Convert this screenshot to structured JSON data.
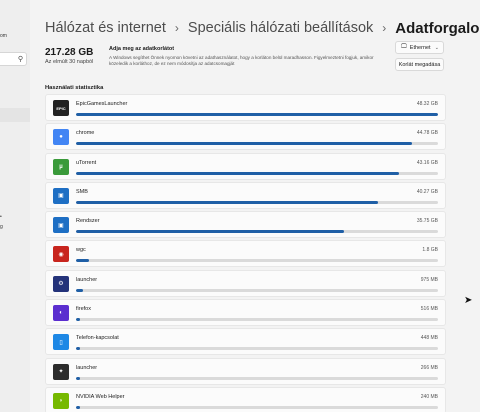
{
  "sidebar": {
    "partial_texts": [
      "om",
      "g"
    ],
    "search_icon": "search-icon"
  },
  "breadcrumb": {
    "items": [
      "Hálózat és internet",
      "Speciális hálózati beállítások",
      "Adatforgalom"
    ],
    "separator": "›"
  },
  "summary": {
    "total": "217.28 GB",
    "caption": "Az elmúlt 30 napból",
    "limit_title": "Adja meg az adatkorlátot",
    "limit_description": "A Windows segíthet Önnek nyomon követni az adathasználatot, hogy a korláton belül maradhasson. Figyelmeztetni fogjuk, amikor közeledik a korláthoz, de ez nem módosítja az adatcsomagját"
  },
  "network_select": {
    "value": "Ethernet",
    "icon": "monitor-icon"
  },
  "limit_button": {
    "label": "Korlát megadása"
  },
  "usage": {
    "heading": "Használati statisztika",
    "bar_color": "#1f5fa6",
    "apps": [
      {
        "name": "EpicGamesLauncher",
        "size": "48.32 GB",
        "fraction": 1.0,
        "icon": "epic-games-icon",
        "color": "#222222",
        "glyph": "EPIC"
      },
      {
        "name": "chrome",
        "size": "44.78 GB",
        "fraction": 0.927,
        "icon": "chrome-icon",
        "color": "#4285f4",
        "glyph": "●"
      },
      {
        "name": "uTorrent",
        "size": "43.16 GB",
        "fraction": 0.893,
        "icon": "utorrent-icon",
        "color": "#3a9a3a",
        "glyph": "µ"
      },
      {
        "name": "SMB",
        "size": "40.27 GB",
        "fraction": 0.833,
        "icon": "smb-icon",
        "color": "#1e6fc4",
        "glyph": "▣"
      },
      {
        "name": "Rendszer",
        "size": "35.75 GB",
        "fraction": 0.74,
        "icon": "system-icon",
        "color": "#1e6fc4",
        "glyph": "▣"
      },
      {
        "name": "wgc",
        "size": "1.8 GB",
        "fraction": 0.037,
        "icon": "wgc-icon",
        "color": "#c8251e",
        "glyph": "◉"
      },
      {
        "name": "launcher",
        "size": "975 MB",
        "fraction": 0.02,
        "icon": "launcher-icon",
        "color": "#24337a",
        "glyph": "⚙"
      },
      {
        "name": "firefox",
        "size": "516 MB",
        "fraction": 0.011,
        "icon": "firefox-icon",
        "color": "#5b2ecf",
        "glyph": "◐"
      },
      {
        "name": "Telefon-kapcsolat",
        "size": "448 MB",
        "fraction": 0.009,
        "icon": "phone-link-icon",
        "color": "#1e88e5",
        "glyph": "▯"
      },
      {
        "name": "launcher",
        "size": "266 MB",
        "fraction": 0.0055,
        "icon": "launcher-icon",
        "color": "#2c2c2c",
        "glyph": "✦"
      },
      {
        "name": "NVIDIA Web Helper",
        "size": "240 MB",
        "fraction": 0.005,
        "icon": "nvidia-icon",
        "color": "#76b900",
        "glyph": "◗"
      }
    ]
  }
}
